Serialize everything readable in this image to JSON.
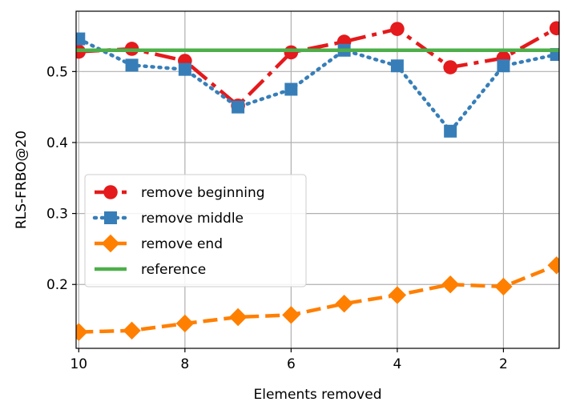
{
  "chart_data": {
    "type": "line",
    "title": "",
    "xlabel": "Elements removed",
    "ylabel": "RLS-FRBO@20",
    "xlim": [
      10.05,
      0.95
    ],
    "ylim": [
      0.11,
      0.585
    ],
    "xticks": [
      10,
      8,
      6,
      4,
      2
    ],
    "xtick_labels": [
      "10",
      "8",
      "6",
      "4",
      "2"
    ],
    "yticks": [
      0.2,
      0.3,
      0.4,
      0.5
    ],
    "ytick_labels": [
      "0.2",
      "0.3",
      "0.4",
      "0.5"
    ],
    "grid": true,
    "legend_position": "center-left",
    "x": [
      10,
      9,
      8,
      7,
      6,
      5,
      4,
      3,
      2,
      1
    ],
    "series": [
      {
        "name": "remove beginning",
        "color": "#e41a1c",
        "linestyle": "dashdot",
        "marker": "circle",
        "values": [
          0.528,
          0.532,
          0.515,
          0.452,
          0.527,
          0.542,
          0.56,
          0.506,
          0.519,
          0.561
        ]
      },
      {
        "name": "remove middle",
        "color": "#377eb8",
        "linestyle": "dotted",
        "marker": "square",
        "values": [
          0.546,
          0.509,
          0.503,
          0.45,
          0.475,
          0.53,
          0.508,
          0.416,
          0.508,
          0.524
        ]
      },
      {
        "name": "remove end",
        "color": "#ff7f00",
        "linestyle": "dashed",
        "marker": "diamond",
        "values": [
          0.133,
          0.135,
          0.145,
          0.154,
          0.157,
          0.173,
          0.185,
          0.2,
          0.197,
          0.227
        ]
      },
      {
        "name": "reference",
        "color": "#4daf4a",
        "linestyle": "solid",
        "marker": "none",
        "values": [
          0.53,
          0.53,
          0.53,
          0.53,
          0.53,
          0.53,
          0.53,
          0.53,
          0.53,
          0.53
        ]
      }
    ]
  }
}
